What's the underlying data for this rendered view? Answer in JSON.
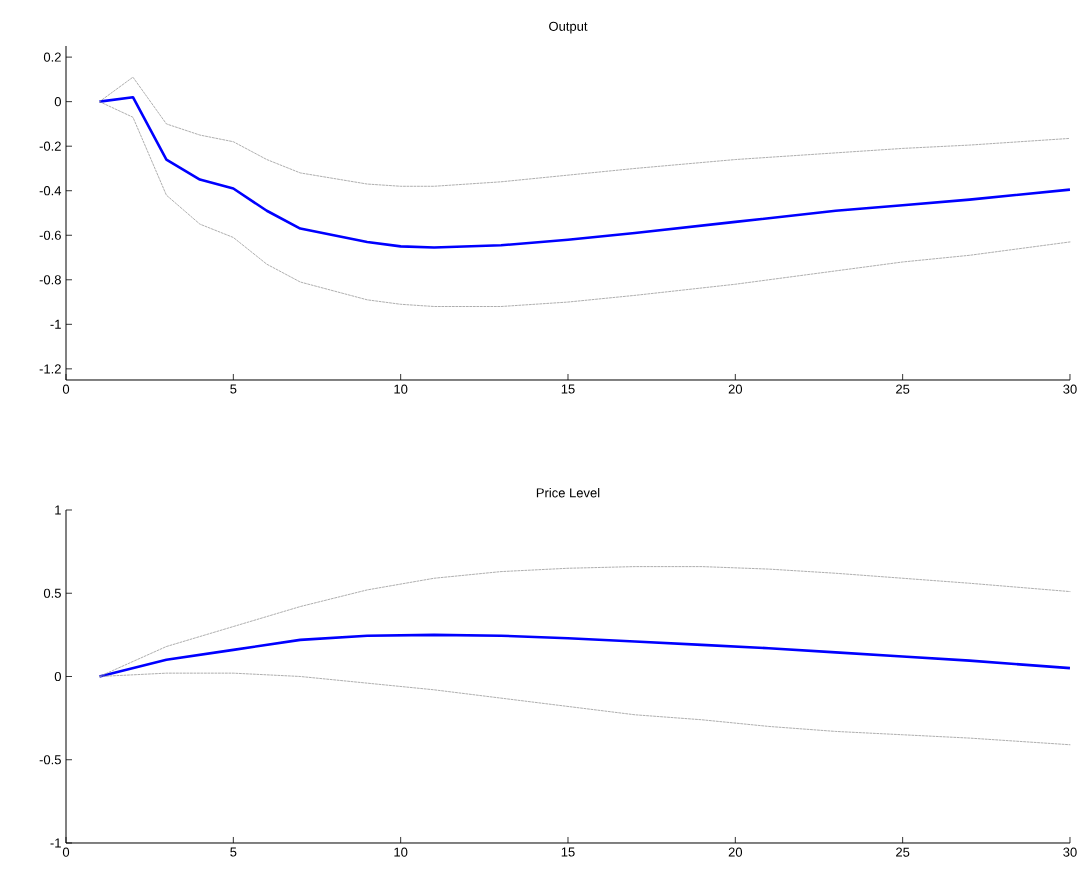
{
  "chart_data": [
    {
      "type": "line",
      "title": "Output",
      "xlim": [
        0,
        30
      ],
      "xticks": [
        0,
        5,
        10,
        15,
        20,
        25,
        30
      ],
      "ylim": [
        -1.25,
        0.25
      ],
      "yticks": [
        -1.2,
        -1,
        -0.8,
        -0.6,
        -0.4,
        -0.2,
        0,
        0.2
      ],
      "x": [
        1,
        2,
        3,
        4,
        5,
        6,
        7,
        8,
        9,
        10,
        11,
        13,
        15,
        17,
        20,
        23,
        25,
        27,
        30
      ],
      "series": [
        {
          "color": "#999999",
          "line_style": "dashed",
          "values": [
            0,
            0.11,
            -0.1,
            -0.15,
            -0.18,
            -0.26,
            -0.32,
            -0.345,
            -0.37,
            -0.38,
            -0.38,
            -0.36,
            -0.33,
            -0.3,
            -0.26,
            -0.23,
            -0.21,
            -0.195,
            -0.165
          ]
        },
        {
          "color": "#999999",
          "line_style": "dashed",
          "values": [
            0,
            -0.07,
            -0.42,
            -0.55,
            -0.61,
            -0.73,
            -0.81,
            -0.85,
            -0.89,
            -0.91,
            -0.92,
            -0.92,
            -0.9,
            -0.87,
            -0.82,
            -0.76,
            -0.72,
            -0.69,
            -0.63
          ]
        },
        {
          "color": "#0000ff",
          "line_style": "solid",
          "values": [
            0,
            0.02,
            -0.26,
            -0.35,
            -0.39,
            -0.49,
            -0.57,
            -0.6,
            -0.63,
            -0.65,
            -0.655,
            -0.645,
            -0.62,
            -0.59,
            -0.54,
            -0.49,
            -0.465,
            -0.44,
            -0.395
          ]
        }
      ]
    },
    {
      "type": "line",
      "title": "Price Level",
      "xlim": [
        0,
        30
      ],
      "xticks": [
        0,
        5,
        10,
        15,
        20,
        25,
        30
      ],
      "ylim": [
        -1,
        1
      ],
      "yticks": [
        -1,
        -0.5,
        0,
        0.5,
        1
      ],
      "x": [
        1,
        3,
        5,
        7,
        9,
        11,
        13,
        15,
        17,
        19,
        21,
        23,
        25,
        27,
        30
      ],
      "series": [
        {
          "color": "#999999",
          "line_style": "dashed",
          "values": [
            0,
            0.18,
            0.3,
            0.42,
            0.52,
            0.59,
            0.63,
            0.65,
            0.66,
            0.66,
            0.645,
            0.62,
            0.59,
            0.56,
            0.51
          ]
        },
        {
          "color": "#999999",
          "line_style": "dashed",
          "values": [
            0,
            0.02,
            0.02,
            0,
            -0.04,
            -0.08,
            -0.13,
            -0.18,
            -0.23,
            -0.26,
            -0.3,
            -0.33,
            -0.35,
            -0.37,
            -0.41
          ]
        },
        {
          "color": "#0000ff",
          "line_style": "solid",
          "values": [
            0,
            0.1,
            0.16,
            0.22,
            0.245,
            0.25,
            0.245,
            0.23,
            0.21,
            0.19,
            0.17,
            0.145,
            0.12,
            0.095,
            0.05
          ]
        }
      ]
    }
  ]
}
